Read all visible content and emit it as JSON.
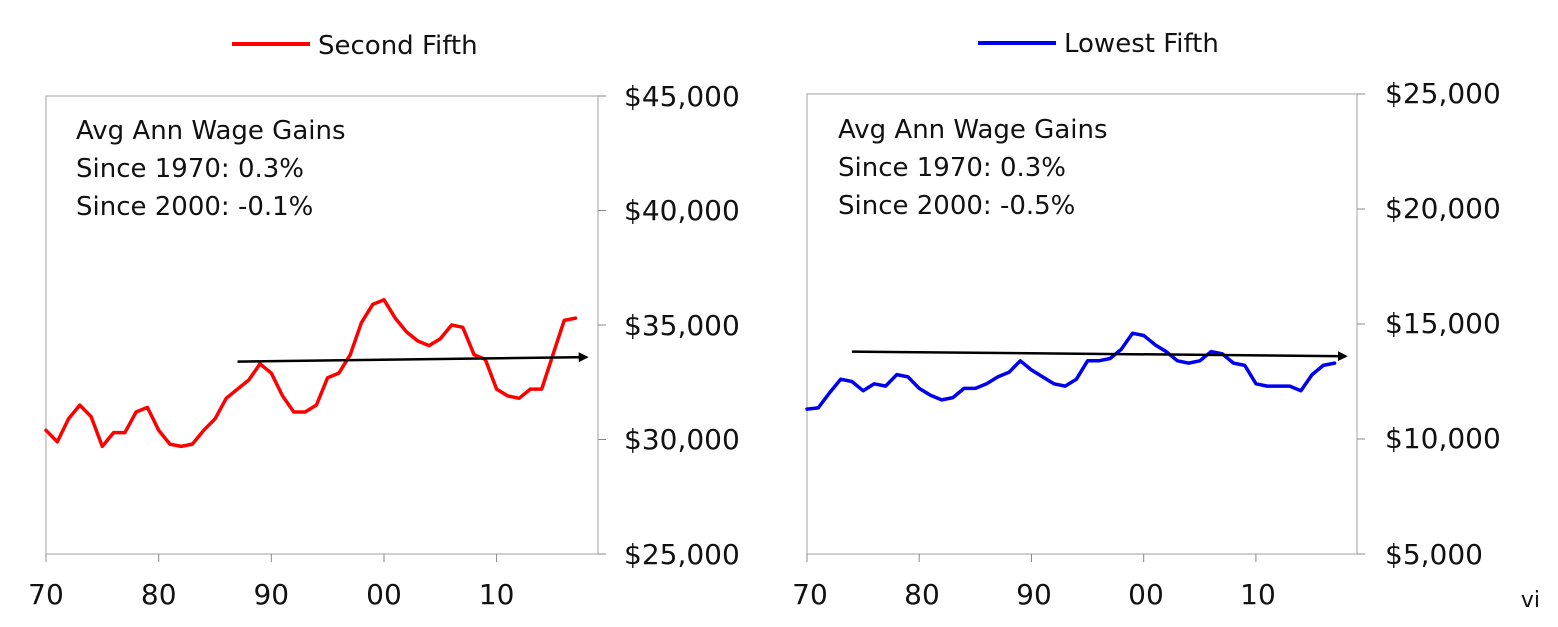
{
  "footer": {
    "mark": "vi"
  },
  "chart_data": [
    {
      "type": "line",
      "legend": {
        "label": "Second Fifth",
        "placement": "top-center",
        "color": "#ff0000"
      },
      "annotation": {
        "lines": [
          "Avg Ann Wage Gains",
          "Since 1970: 0.3%",
          "Since 2000: -0.1%"
        ]
      },
      "x_tick_labels": [
        "70",
        "80",
        "90",
        "00",
        "10"
      ],
      "x_ticks": [
        1970,
        1980,
        1990,
        2000,
        2010
      ],
      "y_tick_labels": [
        "$45,000",
        "$40,000",
        "$35,000",
        "$30,000",
        "$25,000"
      ],
      "ylim": [
        25000,
        45000
      ],
      "xlim": [
        1970,
        2019
      ],
      "y_axis_side": "right",
      "grid": false,
      "series": [
        {
          "name": "Second Fifth",
          "color": "#ff0000",
          "x": [
            1970,
            1971,
            1972,
            1973,
            1974,
            1975,
            1976,
            1977,
            1978,
            1979,
            1980,
            1981,
            1982,
            1983,
            1984,
            1985,
            1986,
            1987,
            1988,
            1989,
            1990,
            1991,
            1992,
            1993,
            1994,
            1995,
            1996,
            1997,
            1998,
            1999,
            2000,
            2001,
            2002,
            2003,
            2004,
            2005,
            2006,
            2007,
            2008,
            2009,
            2010,
            2011,
            2012,
            2013,
            2014,
            2015,
            2016,
            2017
          ],
          "y": [
            30400,
            29900,
            30900,
            31500,
            31000,
            29700,
            30300,
            30300,
            31200,
            31400,
            30400,
            29800,
            29700,
            29800,
            30400,
            30900,
            31800,
            32200,
            32600,
            33300,
            32900,
            31900,
            31200,
            31200,
            31500,
            32700,
            32900,
            33700,
            35100,
            35900,
            36100,
            35300,
            34700,
            34300,
            34100,
            34400,
            35000,
            34900,
            33700,
            33500,
            32200,
            31900,
            31800,
            32200,
            32200,
            33700,
            35200,
            35300
          ]
        }
      ],
      "trend_arrow": {
        "x": [
          1987,
          2018
        ],
        "y": [
          33400,
          33600
        ],
        "color": "#000000"
      }
    },
    {
      "type": "line",
      "legend": {
        "label": "Lowest Fifth",
        "placement": "top-center",
        "color": "#0000ee"
      },
      "annotation": {
        "lines": [
          "Avg Ann Wage Gains",
          "Since 1970: 0.3%",
          "Since 2000: -0.5%"
        ]
      },
      "x_tick_labels": [
        "70",
        "80",
        "90",
        "00",
        "10"
      ],
      "x_ticks": [
        1970,
        1980,
        1990,
        2000,
        2010
      ],
      "y_tick_labels": [
        "$25,000",
        "$20,000",
        "$15,000",
        "$10,000",
        "$5,000"
      ],
      "ylim": [
        5000,
        25000
      ],
      "xlim": [
        1970,
        2019
      ],
      "y_axis_side": "right",
      "grid": false,
      "series": [
        {
          "name": "Lowest Fifth",
          "color": "#0000ee",
          "x": [
            1970,
            1971,
            1972,
            1973,
            1974,
            1975,
            1976,
            1977,
            1978,
            1979,
            1980,
            1981,
            1982,
            1983,
            1984,
            1985,
            1986,
            1987,
            1988,
            1989,
            1990,
            1991,
            1992,
            1993,
            1994,
            1995,
            1996,
            1997,
            1998,
            1999,
            2000,
            2001,
            2002,
            2003,
            2004,
            2005,
            2006,
            2007,
            2008,
            2009,
            2010,
            2011,
            2012,
            2013,
            2014,
            2015,
            2016,
            2017
          ],
          "y": [
            11300,
            11350,
            12000,
            12600,
            12500,
            12100,
            12400,
            12300,
            12800,
            12700,
            12200,
            11900,
            11700,
            11800,
            12200,
            12200,
            12400,
            12700,
            12900,
            13400,
            13000,
            12700,
            12400,
            12300,
            12600,
            13400,
            13400,
            13500,
            13900,
            14600,
            14500,
            14100,
            13800,
            13400,
            13300,
            13400,
            13800,
            13700,
            13300,
            13200,
            12400,
            12300,
            12300,
            12300,
            12100,
            12800,
            13200,
            13300
          ]
        }
      ],
      "trend_arrow": {
        "x": [
          1974,
          2018
        ],
        "y": [
          13800,
          13600
        ],
        "color": "#000000"
      }
    }
  ]
}
